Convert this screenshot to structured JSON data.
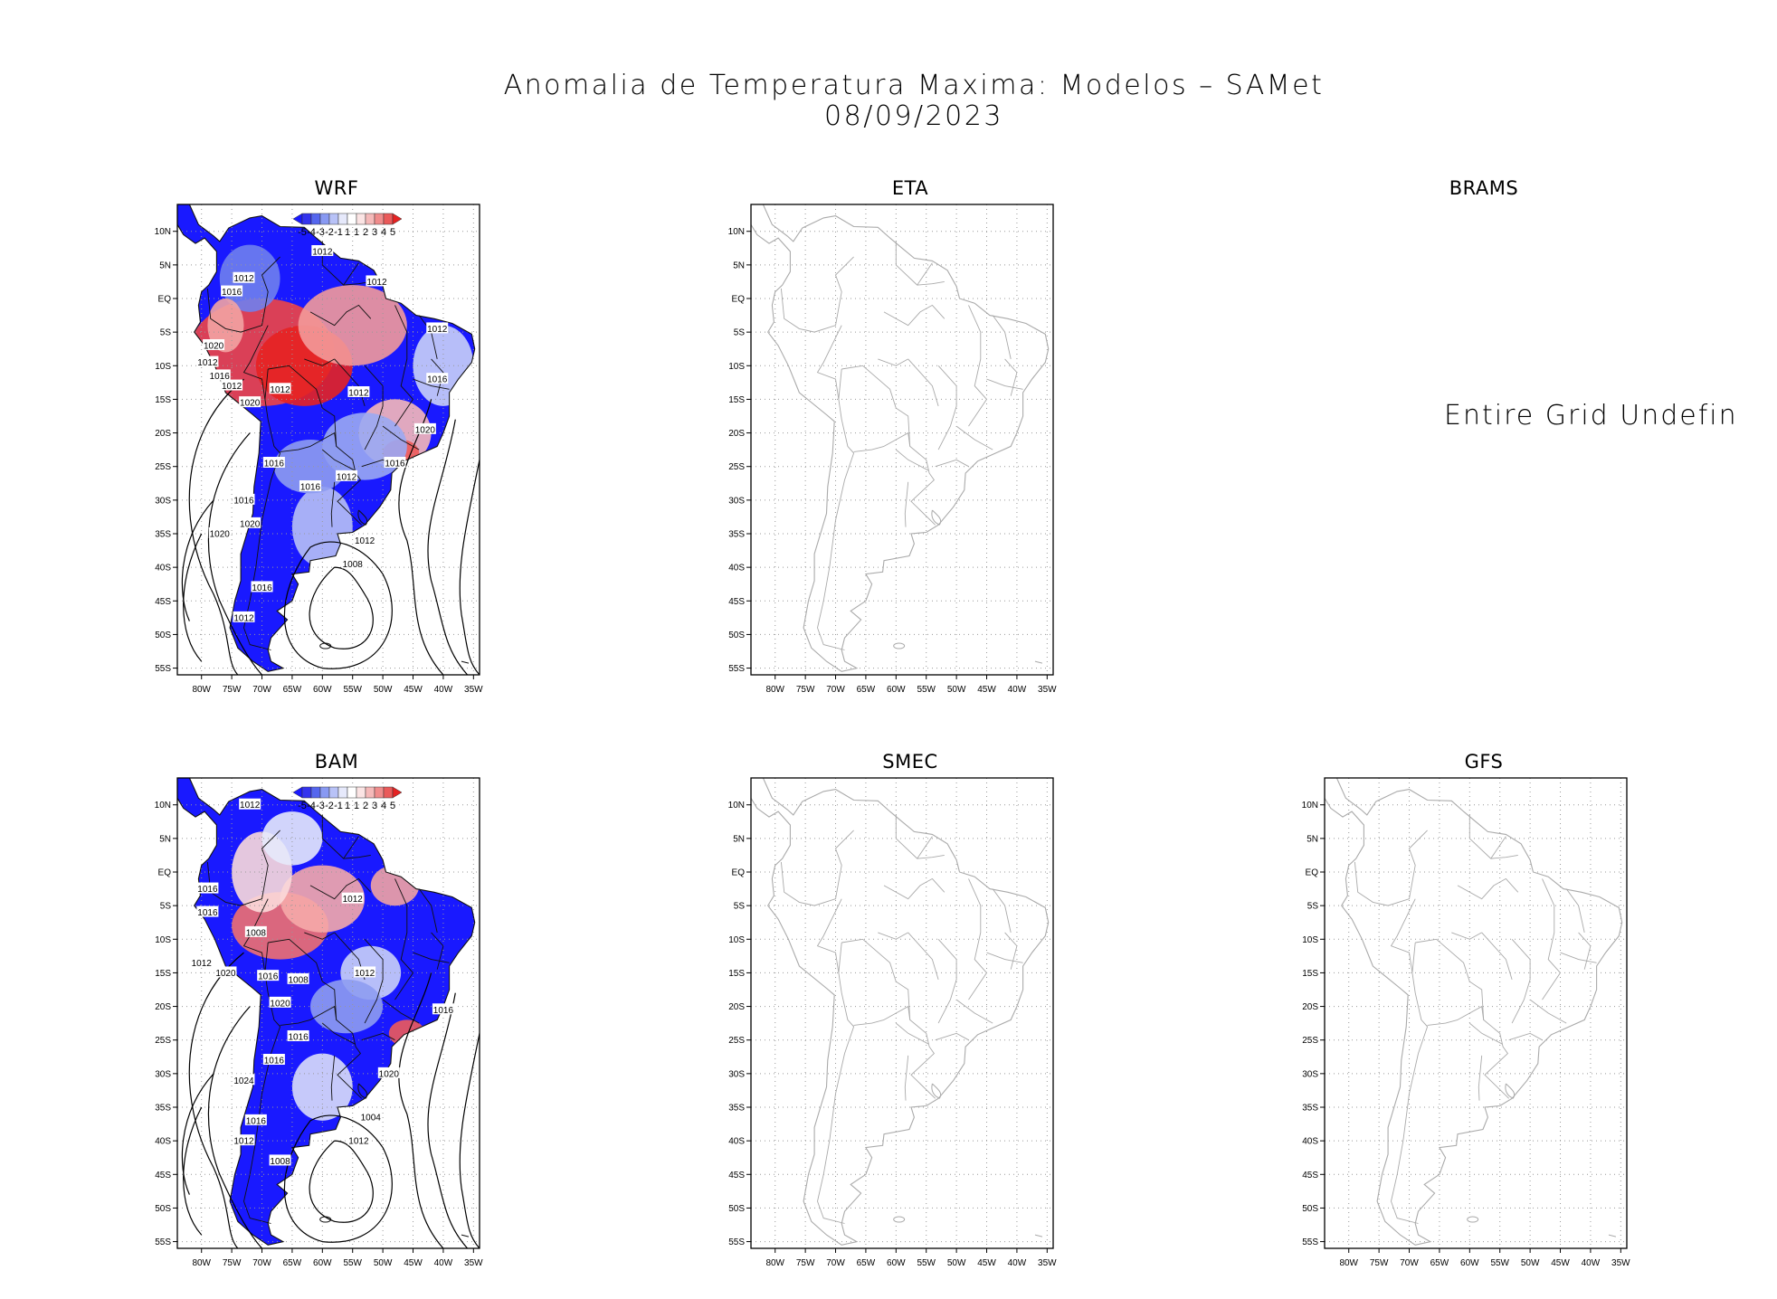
{
  "figure": {
    "title": "Anomalia de Temperatura Maxima: Modelos – SAMet",
    "date": "08/09/2023"
  },
  "axes": {
    "lat_ticks": [
      "10N",
      "5N",
      "EQ",
      "5S",
      "10S",
      "15S",
      "20S",
      "25S",
      "30S",
      "35S",
      "40S",
      "45S",
      "50S",
      "55S"
    ],
    "lon_ticks": [
      "80W",
      "75W",
      "70W",
      "65W",
      "60W",
      "55W",
      "50W",
      "45W",
      "40W",
      "35W"
    ]
  },
  "colorbar": {
    "labels": [
      "-5",
      "-4",
      "-3",
      "-2",
      "-1",
      "1",
      "1",
      "2",
      "3",
      "4",
      "5"
    ],
    "colors": [
      "#1a1aff",
      "#3333ee",
      "#5566ee",
      "#8899f2",
      "#b8c2f7",
      "#e6e9fb",
      "#ffffff",
      "#fbe4e4",
      "#f5b9b9",
      "#f08c8c",
      "#ea5a5a",
      "#e52222"
    ]
  },
  "panels": [
    {
      "name": "WRF",
      "status": "data",
      "contour_labels": [
        "1012",
        "1012",
        "1016",
        "1012",
        "1012",
        "1020",
        "1012",
        "1016",
        "1012",
        "1012",
        "1016",
        "1020",
        "1012",
        "1020",
        "1016",
        "1016",
        "1012",
        "1016",
        "1016",
        "1020",
        "1020",
        "1012",
        "1008",
        "1016",
        "1012"
      ]
    },
    {
      "name": "ETA",
      "status": "empty"
    },
    {
      "name": "BRAMS",
      "status": "undefined",
      "message": "Entire Grid Undefine"
    },
    {
      "name": "BAM",
      "status": "data",
      "contour_labels": [
        "1012",
        "1016",
        "1016",
        "1008",
        "1012",
        "1012",
        "1016",
        "1020",
        "1008",
        "1012",
        "1020",
        "1016",
        "1016",
        "1016",
        "1024",
        "1020",
        "1016",
        "1012",
        "1008",
        "1004",
        "1012"
      ]
    },
    {
      "name": "SMEC",
      "status": "empty"
    },
    {
      "name": "GFS",
      "status": "empty"
    }
  ]
}
